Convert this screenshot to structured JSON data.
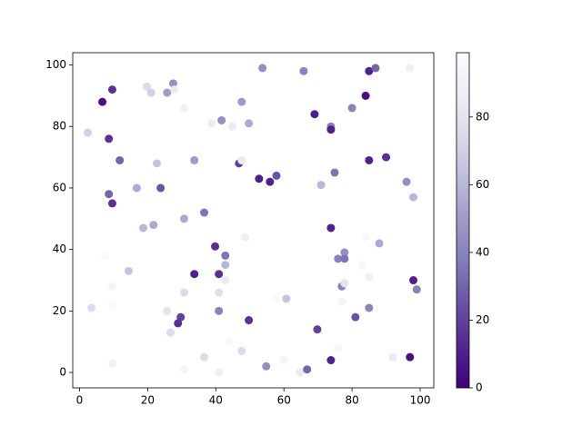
{
  "chart_data": {
    "type": "scatter",
    "x": [
      2.4,
      6.7,
      9.6,
      8.6,
      11.8,
      8.6,
      9.6,
      19.8,
      21,
      27.5,
      25.7,
      27.8,
      30.7,
      22.7,
      16.8,
      23.8,
      18.7,
      21.7,
      33.7,
      30.7,
      36.6,
      38.8,
      41.7,
      44.9,
      47.6,
      49.7,
      46.8,
      47.6,
      53.7,
      65.8,
      52.7,
      55.9,
      57.8,
      69,
      73.8,
      73.8,
      70.9,
      74.9,
      80,
      84,
      85,
      86.9,
      97,
      85,
      90,
      96,
      98,
      39.8,
      42.8,
      42.8,
      42.8,
      33.7,
      40.9,
      48.7,
      73.8,
      77.8,
      75.9,
      77.8,
      77,
      77.8,
      84,
      88,
      83,
      85,
      77,
      81,
      85,
      98,
      99,
      3.5,
      7.5,
      9.6,
      9.6,
      14.4,
      9.6,
      25.7,
      29.7,
      28.9,
      26.7,
      30.7,
      40.9,
      40.9,
      49.7,
      36.6,
      30.7,
      43.9,
      40.9,
      47.6,
      54.8,
      59.9,
      57.8,
      60.7,
      64.7,
      66.8,
      69.8,
      73.8,
      75.9,
      92,
      97
    ],
    "y": [
      78,
      88,
      92,
      76,
      69,
      58,
      55,
      93,
      91,
      94,
      91,
      92,
      86,
      68,
      60,
      60,
      47,
      48,
      69,
      50,
      52,
      81,
      82,
      80,
      88,
      81,
      68,
      69,
      99,
      98,
      63,
      62,
      64,
      84,
      80,
      79,
      61,
      65,
      86,
      90,
      98,
      99,
      99,
      69,
      70,
      62,
      57,
      41,
      38,
      35,
      30,
      32,
      32,
      44,
      47,
      39,
      37,
      37,
      28,
      29,
      44,
      42,
      35,
      31,
      23,
      18,
      21,
      30,
      27,
      21,
      38,
      28,
      22,
      33,
      3,
      20,
      18,
      16,
      13,
      26,
      26,
      20,
      17,
      5,
      1,
      10,
      0,
      7,
      2,
      4,
      24,
      24,
      0,
      1,
      14,
      4,
      8,
      5,
      5
    ],
    "c": [
      70,
      5,
      15,
      15,
      30,
      30,
      15,
      75,
      70,
      45,
      50,
      85,
      90,
      65,
      55,
      25,
      60,
      55,
      50,
      55,
      35,
      85,
      45,
      85,
      50,
      55,
      20,
      85,
      45,
      40,
      10,
      10,
      25,
      10,
      40,
      10,
      60,
      35,
      40,
      5,
      10,
      30,
      88,
      10,
      15,
      45,
      60,
      15,
      35,
      60,
      85,
      10,
      15,
      88,
      10,
      45,
      40,
      35,
      40,
      80,
      95,
      55,
      95,
      88,
      92,
      25,
      40,
      10,
      40,
      75,
      97,
      93,
      97,
      65,
      90,
      80,
      20,
      15,
      75,
      75,
      78,
      40,
      15,
      75,
      93,
      95,
      88,
      75,
      45,
      93,
      97,
      65,
      85,
      30,
      20,
      10,
      95,
      85,
      5
    ],
    "colormap": "Purples_r",
    "clim": [
      0,
      99
    ],
    "cticks": [
      0,
      20,
      40,
      60,
      80
    ],
    "xlim": [
      -2,
      104
    ],
    "ylim": [
      -5,
      104
    ],
    "xticks": [
      0,
      20,
      40,
      60,
      80,
      100
    ],
    "yticks": [
      0,
      20,
      40,
      60,
      80,
      100
    ]
  }
}
